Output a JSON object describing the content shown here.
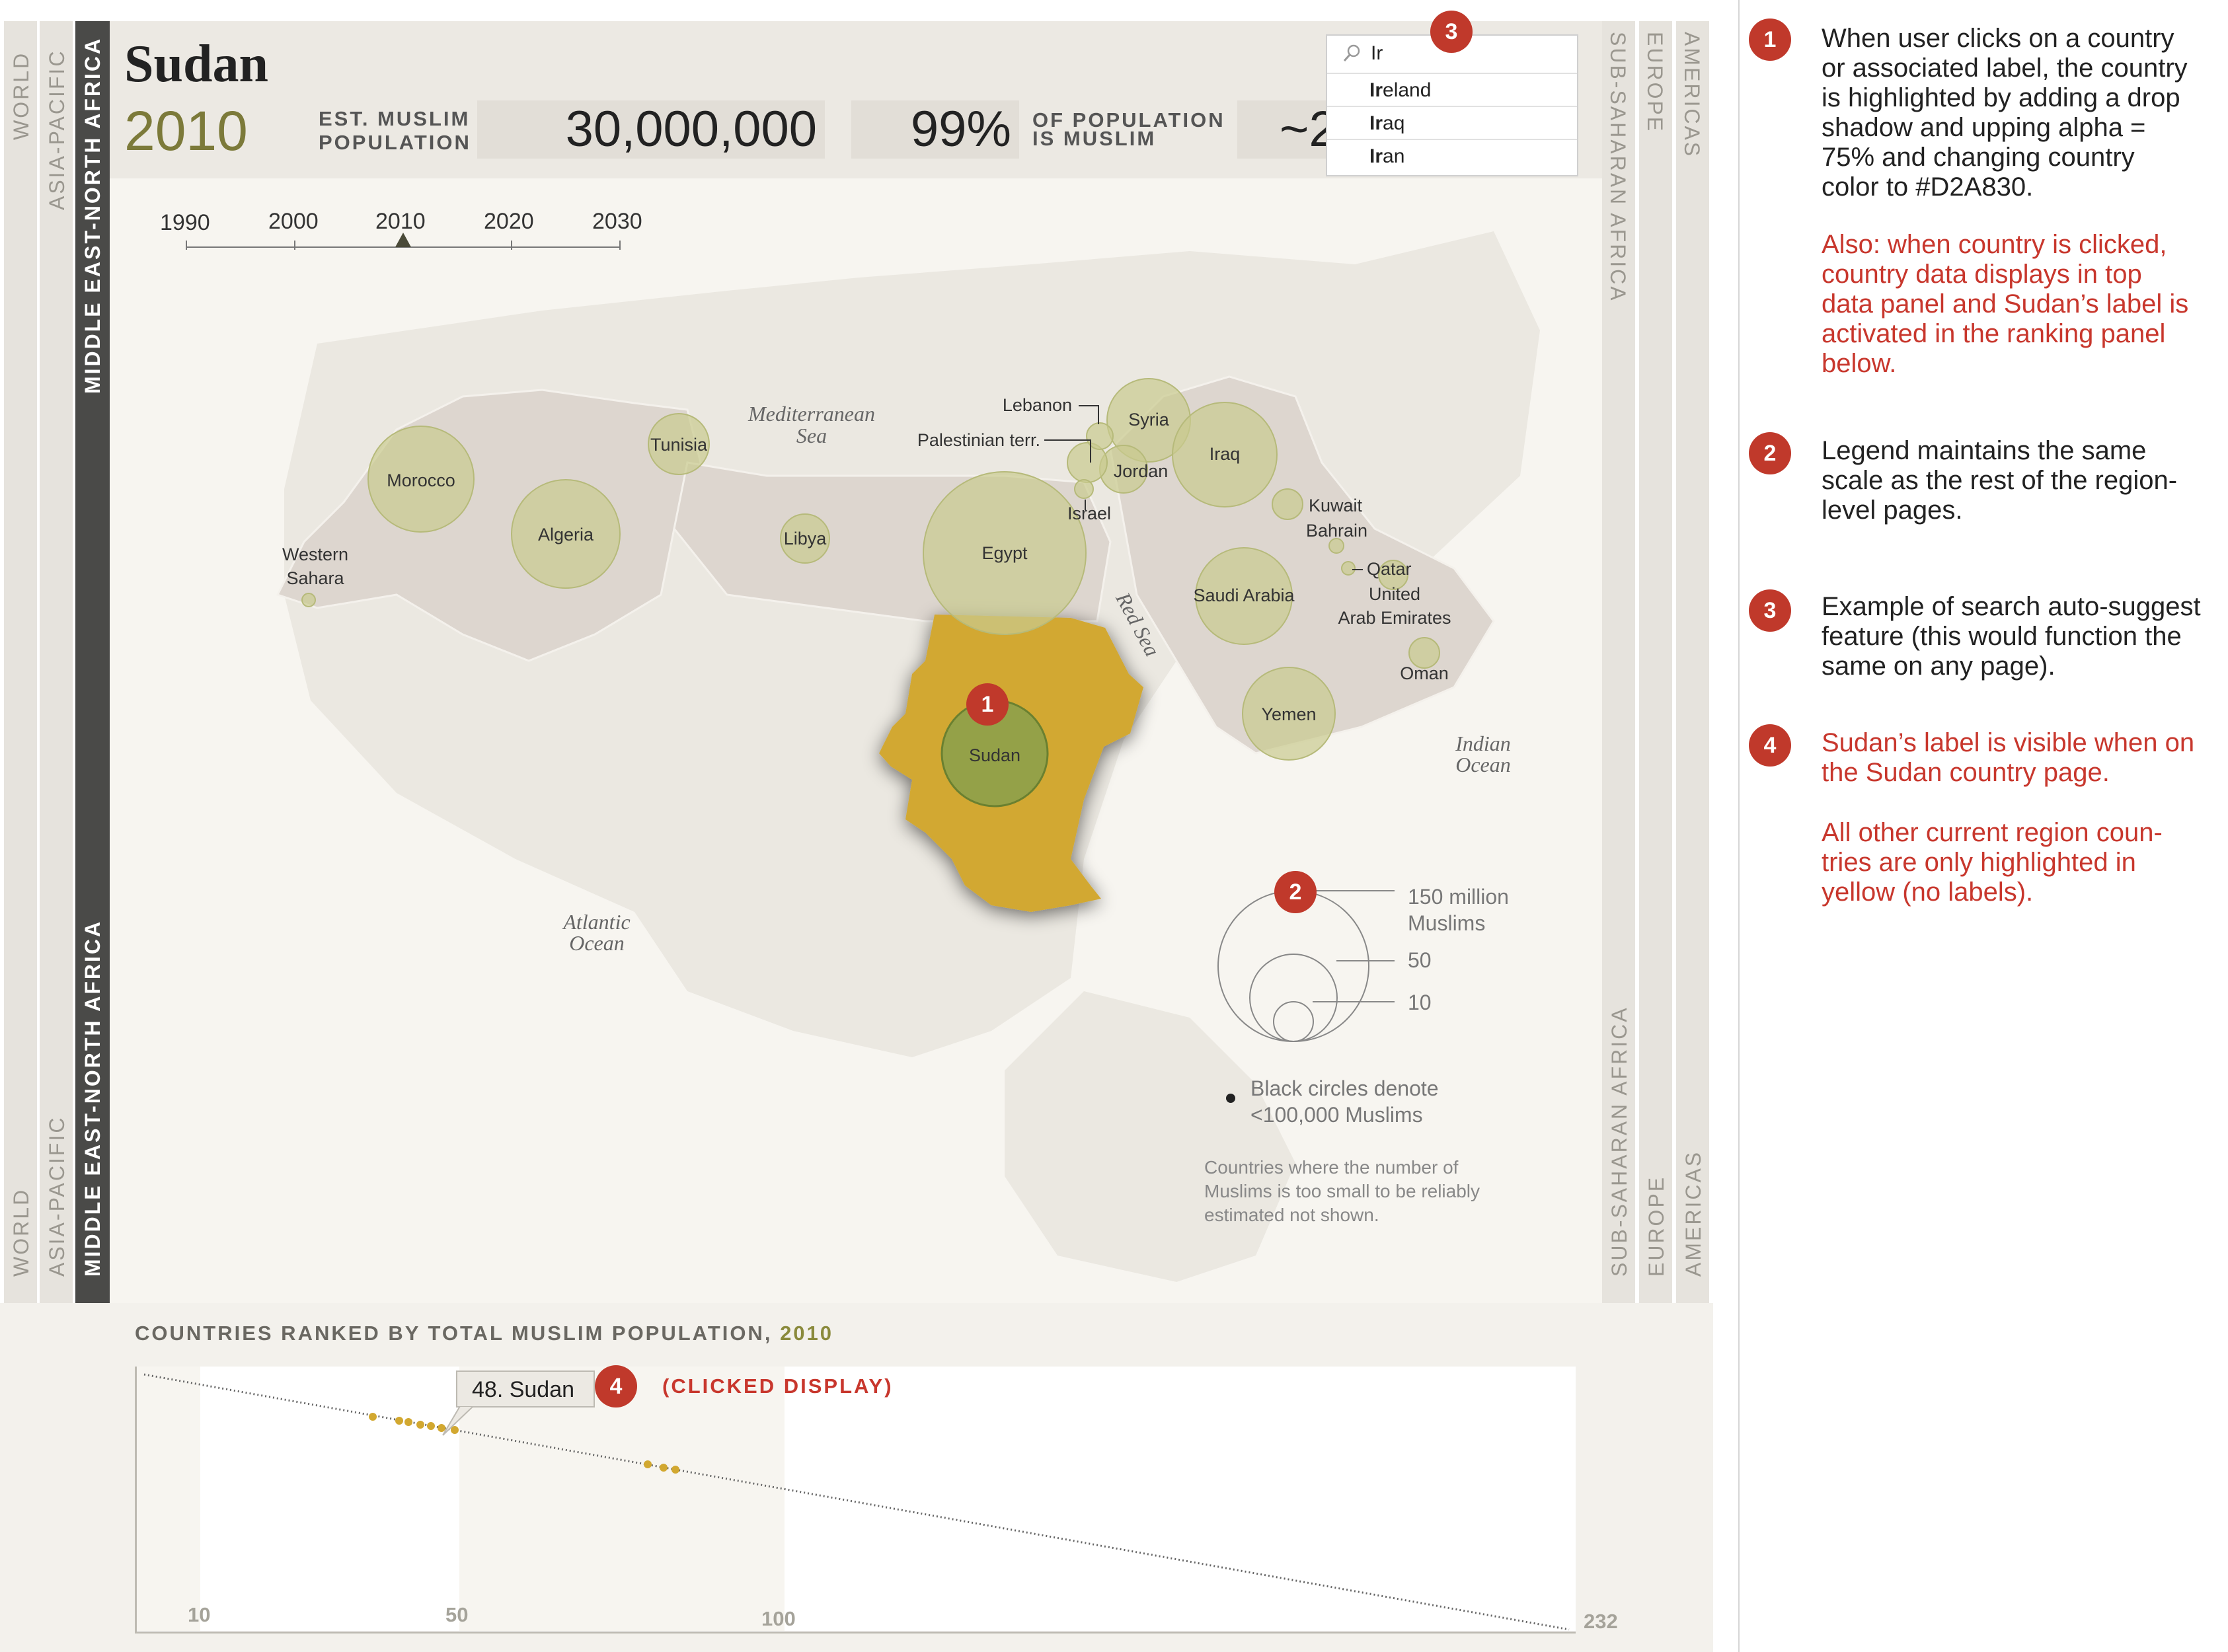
{
  "nav": {
    "left": {
      "world": "WORLD",
      "asia_pacific": "ASIA-PACIFIC",
      "mena": "MIDDLE EAST-NORTH AFRICA"
    },
    "right": {
      "ssa": "SUB-SAHARAN AFRICA",
      "europe": "EUROPE",
      "americas": "AMERICAS"
    }
  },
  "header": {
    "country": "Sudan",
    "year": "2010",
    "muslim_pop_label_1": "EST. MUSLIM",
    "muslim_pop_label_2": "POPULATION",
    "muslim_pop_value": "30,000,000",
    "pct_value": "99%",
    "pct_label_1": "OF POPULATION",
    "pct_label_2": "IS MUSLIM",
    "third_value_partial": "~2"
  },
  "search": {
    "query": "Ir",
    "suggestions": [
      {
        "match": "Ir",
        "rest": "eland"
      },
      {
        "match": "Ir",
        "rest": "aq"
      },
      {
        "match": "Ir",
        "rest": "an"
      }
    ]
  },
  "timeline": {
    "years": [
      "1990",
      "2000",
      "2010",
      "2020",
      "2030"
    ],
    "selected": "2010"
  },
  "map": {
    "countries": [
      "Morocco",
      "Algeria",
      "Tunisia",
      "Libya",
      "Egypt",
      "Sudan",
      "Syria",
      "Iraq",
      "Jordan",
      "Saudi Arabia",
      "Yemen",
      "Oman"
    ],
    "labels": {
      "western_sahara_1": "Western",
      "western_sahara_2": "Sahara",
      "lebanon": "Lebanon",
      "palestinian": "Palestinian terr.",
      "israel": "Israel",
      "kuwait": "Kuwait",
      "bahrain": "Bahrain",
      "qatar": "Qatar",
      "uae_1": "United",
      "uae_2": "Arab Emirates"
    },
    "seas": {
      "med_1": "Mediterranean",
      "med_2": "Sea",
      "red": "Red Sea",
      "indian_1": "Indian",
      "indian_2": "Ocean",
      "atlantic_1": "Atlantic",
      "atlantic_2": "Ocean"
    },
    "highlight_color": "#D2A830",
    "bubble_color": "#c9cb8e"
  },
  "legend": {
    "v150_1": "150 million",
    "v150_2": "Muslims",
    "v50": "50",
    "v10": "10",
    "black_1": "Black circles denote",
    "black_2": "<100,000 Muslims",
    "small_1": "Countries where the number of",
    "small_2": "Muslims is too small to be reliably",
    "small_3": "estimated not shown."
  },
  "markers": [
    "1",
    "2",
    "3",
    "4"
  ],
  "ranking": {
    "title": "COUNTRIES RANKED BY TOTAL MUSLIM POPULATION,",
    "title_year": "2010",
    "tooltip": "48. Sudan",
    "clicked": "(CLICKED DISPLAY)",
    "ticks": [
      "10",
      "50",
      "100",
      "232"
    ]
  },
  "notes": {
    "n1_black": [
      "When user clicks on a country",
      "or associated label, the country",
      "is highlighted by adding a drop",
      "shadow and upping alpha =",
      "75% and changing country",
      "color to #D2A830."
    ],
    "n1_red": [
      "Also: when country is clicked,",
      "country data displays in top",
      "data panel and Sudan’s label is",
      "activated in the ranking panel",
      "below."
    ],
    "n2": [
      "Legend maintains the same",
      "scale as the rest of the region-",
      "level pages."
    ],
    "n3": [
      "Example of search auto-suggest",
      "feature (this would function the",
      "same on any page)."
    ],
    "n4a": [
      "Sudan’s label is visible when on",
      "the Sudan country page."
    ],
    "n4b": [
      "All other current region coun-",
      "tries are only highlighted in",
      "yellow (no labels)."
    ]
  }
}
